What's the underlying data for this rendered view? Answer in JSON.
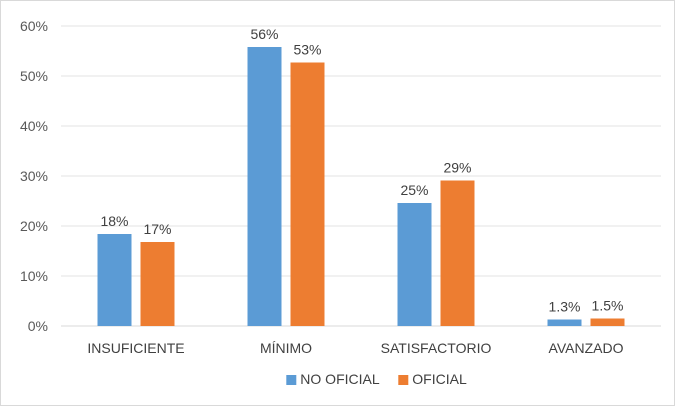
{
  "chart_data": {
    "type": "bar",
    "categories": [
      "INSUFICIENTE",
      "MÍNIMO",
      "SATISFACTORIO",
      "AVANZADO"
    ],
    "series": [
      {
        "name": "NO OFICIAL",
        "values": [
          18.4,
          55.8,
          24.6,
          1.3
        ],
        "labels": [
          "18%",
          "56%",
          "25%",
          "1.3%"
        ],
        "color": "#5b9bd5"
      },
      {
        "name": "OFICIAL",
        "values": [
          16.8,
          52.7,
          29.1,
          1.5
        ],
        "labels": [
          "17%",
          "53%",
          "29%",
          "1.5%"
        ],
        "color": "#ed7d31"
      }
    ],
    "ylim": [
      0,
      60
    ],
    "yticks": [
      0,
      10,
      20,
      30,
      40,
      50,
      60
    ],
    "ytick_labels": [
      "0%",
      "10%",
      "20%",
      "30%",
      "40%",
      "50%",
      "60%"
    ],
    "grid": true,
    "legend_position": "bottom",
    "title": "",
    "xlabel": "",
    "ylabel": ""
  }
}
